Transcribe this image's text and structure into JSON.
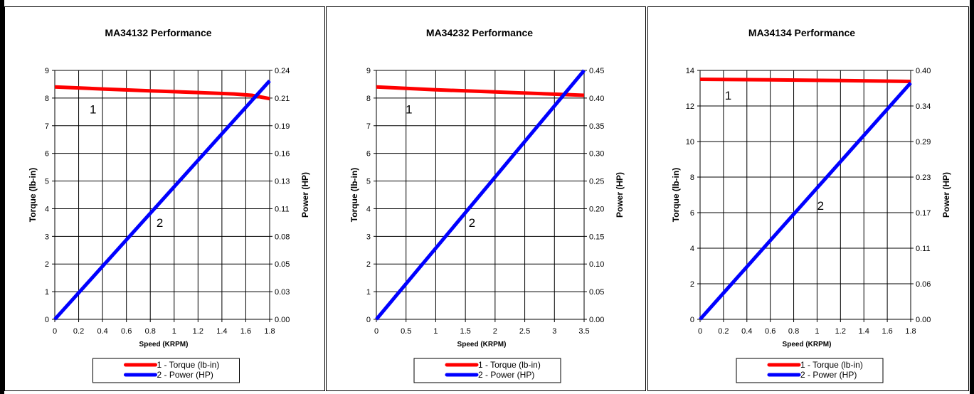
{
  "chart_data": [
    {
      "type": "line",
      "title": "MA34132 Performance",
      "xlabel": "Speed (KRPM)",
      "ylabel": "Torque (lb-in)",
      "y2label": "Power (HP)",
      "xlim": [
        0,
        1.8
      ],
      "ylim": [
        0,
        9
      ],
      "y2lim": [
        0,
        0.24
      ],
      "x_ticks": [
        "0",
        "0.2",
        "0.4",
        "0.6",
        "0.8",
        "1",
        "1.2",
        "1.4",
        "1.6",
        "1.8"
      ],
      "y_ticks": [
        "0",
        "1",
        "2",
        "3",
        "4",
        "5",
        "6",
        "7",
        "8",
        "9"
      ],
      "y2_ticks": [
        "0.00",
        "0.03",
        "0.05",
        "0.08",
        "0.11",
        "0.13",
        "0.16",
        "0.19",
        "0.21",
        "0.24"
      ],
      "grid": true,
      "series": [
        {
          "name": "1 - Torque (lb-in)",
          "axis": "left",
          "color": "#ff0000",
          "label": "1",
          "x": [
            0,
            0.4,
            0.8,
            1.2,
            1.5,
            1.65,
            1.8
          ],
          "y": [
            8.4,
            8.33,
            8.26,
            8.2,
            8.15,
            8.1,
            7.98
          ]
        },
        {
          "name": "2 - Power (HP)",
          "axis": "right",
          "color": "#0000ff",
          "label": "2",
          "x": [
            0,
            1.8
          ],
          "y": [
            0,
            0.23
          ]
        }
      ],
      "annotations": [
        {
          "text": "1",
          "series": 0,
          "x": 0.32,
          "y": 7.6
        },
        {
          "text": "2",
          "series": 1,
          "x": 0.88,
          "y": 3.5
        }
      ],
      "legend": [
        "1 - Torque (lb-in)",
        "2 - Power (HP)"
      ],
      "legend_position": "bottom"
    },
    {
      "type": "line",
      "title": "MA34232 Performance",
      "xlabel": "Speed (KRPM)",
      "ylabel": "Torque (lb-in)",
      "y2label": "Power (HP)",
      "xlim": [
        0,
        3.5
      ],
      "ylim": [
        0,
        9
      ],
      "y2lim": [
        0,
        0.45
      ],
      "x_ticks": [
        "0",
        "0.5",
        "1",
        "1.5",
        "2",
        "2.5",
        "3",
        "3.5"
      ],
      "y_ticks": [
        "0",
        "1",
        "2",
        "3",
        "4",
        "5",
        "6",
        "7",
        "8",
        "9"
      ],
      "y2_ticks": [
        "0.00",
        "0.05",
        "0.10",
        "0.15",
        "0.20",
        "0.25",
        "0.30",
        "0.35",
        "0.40",
        "0.45"
      ],
      "grid": true,
      "series": [
        {
          "name": "1 - Torque (lb-in)",
          "axis": "left",
          "color": "#ff0000",
          "label": "1",
          "x": [
            0,
            1,
            2,
            3,
            3.5
          ],
          "y": [
            8.4,
            8.3,
            8.22,
            8.14,
            8.1
          ]
        },
        {
          "name": "2 - Power (HP)",
          "axis": "right",
          "color": "#0000ff",
          "label": "2",
          "x": [
            0,
            3.5
          ],
          "y": [
            0,
            0.45
          ]
        }
      ],
      "annotations": [
        {
          "text": "1",
          "series": 0,
          "x": 0.55,
          "y": 7.6
        },
        {
          "text": "2",
          "series": 1,
          "x": 1.61,
          "y": 3.5
        }
      ],
      "legend": [
        "1 - Torque (lb-in)",
        "2 - Power (HP)"
      ],
      "legend_position": "bottom"
    },
    {
      "type": "line",
      "title": "MA34134 Performance",
      "xlabel": "Speed (KRPM)",
      "ylabel": "Torque (lb-in)",
      "y2label": "Power (HP)",
      "xlim": [
        0,
        1.8
      ],
      "ylim": [
        0,
        14
      ],
      "y2lim": [
        0,
        0.4
      ],
      "x_ticks": [
        "0",
        "0.2",
        "0.4",
        "0.6",
        "0.8",
        "1",
        "1.2",
        "1.4",
        "1.6",
        "1.8"
      ],
      "y_ticks": [
        "0",
        "2",
        "4",
        "6",
        "8",
        "10",
        "12",
        "14"
      ],
      "y2_ticks": [
        "0.00",
        "0.06",
        "0.11",
        "0.17",
        "0.23",
        "0.29",
        "0.34",
        "0.40"
      ],
      "grid": true,
      "series": [
        {
          "name": "1 - Torque (lb-in)",
          "axis": "left",
          "color": "#ff0000",
          "label": "1",
          "x": [
            0,
            0.6,
            1.2,
            1.8
          ],
          "y": [
            13.5,
            13.47,
            13.43,
            13.38
          ]
        },
        {
          "name": "2 - Power (HP)",
          "axis": "right",
          "color": "#0000ff",
          "label": "2",
          "x": [
            0,
            1.8
          ],
          "y": [
            0,
            0.38
          ]
        }
      ],
      "annotations": [
        {
          "text": "1",
          "series": 0,
          "x": 0.24,
          "y": 12.6
        },
        {
          "text": "2",
          "series": 1,
          "x": 1.03,
          "y": 6.4
        }
      ],
      "legend": [
        "1 - Torque (lb-in)",
        "2 - Power (HP)"
      ],
      "legend_position": "bottom"
    }
  ]
}
